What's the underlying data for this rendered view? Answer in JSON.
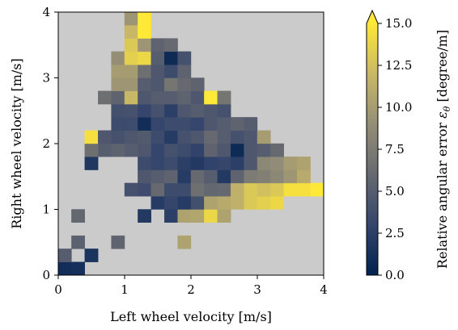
{
  "chart_data": {
    "type": "heatmap",
    "title": "",
    "xlabel": "Left wheel velocity [m/s]",
    "ylabel": "Right wheel velocity [m/s]",
    "xlim": [
      0,
      4
    ],
    "ylim": [
      0,
      4
    ],
    "cell_size": 0.2,
    "background_color": "#cbcbcb",
    "x_ticks": [
      "0",
      "1",
      "2",
      "3",
      "4"
    ],
    "y_ticks": [
      "0",
      "1",
      "2",
      "3",
      "4"
    ],
    "colorbar": {
      "label_prefix": "Relative angular error ",
      "label_symbol": "ε",
      "label_subscript": "θ",
      "label_suffix": " [degree/m]",
      "min": 0,
      "max": 15,
      "extend": "max",
      "ticks": [
        "0.0",
        "2.5",
        "5.0",
        "7.5",
        "10.0",
        "12.5",
        "15.0"
      ],
      "colormap": "cividis",
      "stops": [
        "#00224e",
        "#35456c",
        "#666970",
        "#948e77",
        "#c8b866",
        "#fee838"
      ]
    },
    "cells": [
      [
        0.1,
        0.1,
        1.0
      ],
      [
        0.3,
        0.1,
        1.2
      ],
      [
        0.1,
        0.3,
        5.0
      ],
      [
        0.5,
        0.3,
        1.5
      ],
      [
        0.3,
        0.5,
        5.3
      ],
      [
        0.9,
        0.5,
        5.6
      ],
      [
        1.9,
        0.5,
        10.5
      ],
      [
        0.3,
        0.9,
        5.8
      ],
      [
        1.3,
        0.9,
        2.0
      ],
      [
        1.7,
        0.9,
        2.5
      ],
      [
        1.9,
        0.9,
        10.5
      ],
      [
        2.1,
        0.9,
        10.7
      ],
      [
        2.3,
        0.9,
        14.0
      ],
      [
        2.5,
        0.9,
        10.5
      ],
      [
        1.5,
        1.1,
        2.2
      ],
      [
        1.7,
        1.1,
        3.0
      ],
      [
        1.9,
        1.1,
        2.2
      ],
      [
        2.1,
        1.1,
        3.8
      ],
      [
        2.3,
        1.1,
        10.5
      ],
      [
        2.5,
        1.1,
        11.0
      ],
      [
        2.7,
        1.1,
        11.5
      ],
      [
        2.9,
        1.1,
        13.0
      ],
      [
        3.1,
        1.1,
        13.5
      ],
      [
        3.3,
        1.1,
        14.0
      ],
      [
        1.1,
        1.3,
        4.0
      ],
      [
        1.3,
        1.3,
        3.6
      ],
      [
        1.5,
        1.3,
        6.0
      ],
      [
        1.7,
        1.3,
        3.5
      ],
      [
        1.9,
        1.3,
        3.5
      ],
      [
        2.1,
        1.3,
        6.5
      ],
      [
        2.3,
        1.3,
        5.8
      ],
      [
        2.5,
        1.3,
        6.0
      ],
      [
        2.7,
        1.3,
        11.5
      ],
      [
        2.9,
        1.3,
        13.0
      ],
      [
        3.1,
        1.3,
        12.5
      ],
      [
        3.3,
        1.3,
        13.0
      ],
      [
        3.5,
        1.3,
        14.5
      ],
      [
        3.7,
        1.3,
        14.5
      ],
      [
        3.9,
        1.3,
        15.0
      ],
      [
        1.3,
        1.5,
        4.5
      ],
      [
        1.5,
        1.5,
        5.0
      ],
      [
        1.7,
        1.5,
        5.5
      ],
      [
        1.9,
        1.5,
        2.2
      ],
      [
        2.1,
        1.5,
        6.0
      ],
      [
        2.3,
        1.5,
        5.0
      ],
      [
        2.5,
        1.5,
        2.0
      ],
      [
        2.7,
        1.5,
        5.5
      ],
      [
        2.9,
        1.5,
        7.5
      ],
      [
        3.1,
        1.5,
        7.8
      ],
      [
        3.3,
        1.5,
        8.5
      ],
      [
        3.5,
        1.5,
        9.5
      ],
      [
        3.7,
        1.5,
        11.0
      ],
      [
        1.3,
        1.7,
        3.5
      ],
      [
        1.5,
        1.7,
        3.0
      ],
      [
        1.7,
        1.7,
        3.5
      ],
      [
        1.9,
        1.7,
        2.5
      ],
      [
        2.1,
        1.7,
        2.0
      ],
      [
        2.3,
        1.7,
        2.8
      ],
      [
        2.5,
        1.7,
        3.0
      ],
      [
        2.7,
        1.7,
        2.5
      ],
      [
        2.9,
        1.7,
        4.5
      ],
      [
        3.1,
        1.7,
        8.5
      ],
      [
        3.3,
        1.7,
        8.8
      ],
      [
        3.5,
        1.7,
        10.0
      ],
      [
        3.7,
        1.7,
        10.5
      ],
      [
        0.5,
        1.7,
        1.8
      ],
      [
        0.7,
        1.9,
        5.0
      ],
      [
        0.5,
        1.9,
        6.5
      ],
      [
        0.9,
        1.9,
        5.5
      ],
      [
        1.1,
        1.9,
        5.0
      ],
      [
        1.3,
        1.9,
        4.5
      ],
      [
        1.5,
        1.9,
        3.0
      ],
      [
        1.7,
        1.9,
        4.0
      ],
      [
        1.9,
        1.9,
        3.5
      ],
      [
        2.1,
        1.9,
        2.8
      ],
      [
        2.3,
        1.9,
        5.5
      ],
      [
        2.5,
        1.9,
        4.5
      ],
      [
        2.7,
        1.9,
        0.8
      ],
      [
        2.9,
        1.9,
        4.5
      ],
      [
        3.1,
        1.9,
        5.0
      ],
      [
        3.3,
        1.9,
        6.0
      ],
      [
        0.9,
        2.1,
        4.0
      ],
      [
        1.1,
        2.1,
        4.5
      ],
      [
        1.3,
        2.1,
        4.8
      ],
      [
        1.5,
        2.1,
        3.5
      ],
      [
        1.7,
        2.1,
        2.2
      ],
      [
        1.9,
        2.1,
        4.0
      ],
      [
        2.1,
        2.1,
        4.5
      ],
      [
        2.3,
        2.1,
        6.0
      ],
      [
        2.5,
        2.1,
        5.0
      ],
      [
        2.7,
        2.1,
        4.0
      ],
      [
        2.9,
        2.1,
        4.5
      ],
      [
        3.1,
        2.1,
        10.0
      ],
      [
        0.5,
        2.1,
        14.5
      ],
      [
        0.7,
        2.1,
        4.5
      ],
      [
        0.9,
        2.3,
        3.5
      ],
      [
        1.1,
        2.3,
        3.5
      ],
      [
        1.3,
        2.3,
        1.0
      ],
      [
        1.5,
        2.3,
        3.0
      ],
      [
        1.7,
        2.3,
        3.5
      ],
      [
        1.9,
        2.3,
        3.5
      ],
      [
        2.1,
        2.3,
        3.0
      ],
      [
        2.3,
        2.3,
        4.5
      ],
      [
        2.5,
        2.3,
        5.0
      ],
      [
        2.7,
        2.3,
        5.5
      ],
      [
        2.9,
        2.3,
        5.0
      ],
      [
        0.9,
        2.5,
        3.8
      ],
      [
        1.1,
        2.5,
        4.0
      ],
      [
        1.3,
        2.5,
        3.0
      ],
      [
        1.5,
        2.5,
        4.0
      ],
      [
        1.7,
        2.5,
        2.5
      ],
      [
        1.9,
        2.5,
        4.5
      ],
      [
        2.1,
        2.5,
        5.0
      ],
      [
        2.3,
        2.5,
        4.5
      ],
      [
        2.5,
        2.5,
        4.0
      ],
      [
        0.7,
        2.7,
        6.5
      ],
      [
        0.9,
        2.7,
        5.5
      ],
      [
        1.1,
        2.7,
        12.0
      ],
      [
        1.3,
        2.7,
        4.5
      ],
      [
        1.5,
        2.7,
        5.0
      ],
      [
        1.7,
        2.7,
        5.0
      ],
      [
        1.9,
        2.7,
        5.5
      ],
      [
        2.1,
        2.7,
        4.5
      ],
      [
        2.3,
        2.7,
        15.0
      ],
      [
        2.5,
        2.7,
        7.0
      ],
      [
        0.9,
        2.9,
        9.5
      ],
      [
        1.1,
        2.9,
        9.5
      ],
      [
        1.3,
        2.9,
        5.0
      ],
      [
        1.5,
        2.9,
        4.5
      ],
      [
        1.7,
        2.9,
        7.0
      ],
      [
        1.9,
        2.9,
        6.0
      ],
      [
        2.1,
        2.9,
        5.5
      ],
      [
        0.9,
        3.1,
        10.0
      ],
      [
        1.1,
        3.1,
        10.0
      ],
      [
        1.3,
        3.1,
        6.5
      ],
      [
        1.5,
        3.1,
        4.5
      ],
      [
        1.7,
        3.1,
        3.5
      ],
      [
        1.9,
        3.1,
        5.5
      ],
      [
        0.9,
        3.3,
        9.0
      ],
      [
        1.1,
        3.3,
        13.5
      ],
      [
        1.3,
        3.3,
        14.0
      ],
      [
        1.5,
        3.3,
        5.0
      ],
      [
        1.7,
        3.3,
        0.8
      ],
      [
        1.9,
        3.3,
        4.0
      ],
      [
        1.1,
        3.5,
        13.0
      ],
      [
        1.3,
        3.5,
        9.5
      ],
      [
        1.5,
        3.5,
        5.5
      ],
      [
        1.7,
        3.5,
        6.0
      ],
      [
        1.1,
        3.7,
        12.0
      ],
      [
        1.3,
        3.7,
        15.0
      ],
      [
        1.1,
        3.9,
        9.5
      ],
      [
        1.3,
        3.9,
        15.0
      ]
    ]
  }
}
